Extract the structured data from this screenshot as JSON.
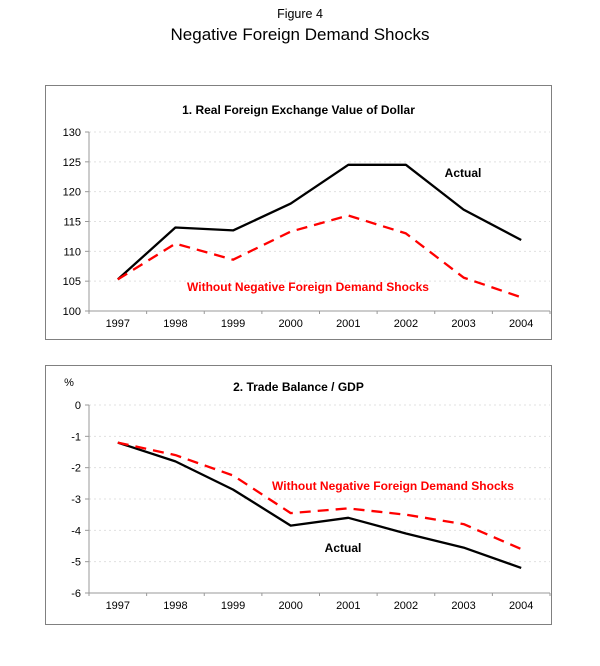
{
  "figure": {
    "number": "Figure 4",
    "title": "Negative Foreign Demand Shocks"
  },
  "colors": {
    "actual": "#000000",
    "counterfactual": "#ff0000",
    "grid": "#e0e0e0",
    "axis": "#999999",
    "text": "#000000"
  },
  "chart_data": [
    {
      "type": "line",
      "panel_title": "1. Real Foreign Exchange Value of Dollar",
      "unit_label": "",
      "categories": [
        "1997",
        "1998",
        "1999",
        "2000",
        "2001",
        "2002",
        "2003",
        "2004"
      ],
      "ylim": [
        100,
        130
      ],
      "yticks": [
        130,
        125,
        120,
        115,
        110,
        105,
        100
      ],
      "grid": true,
      "legend_position": "inline-annotations",
      "series": [
        {
          "name": "Actual",
          "style": "solid",
          "color_key": "actual",
          "values": [
            105.3,
            114.0,
            113.5,
            118.0,
            124.5,
            124.5,
            117.0,
            111.9
          ]
        },
        {
          "name": "Without Negative Foreign Demand Shocks",
          "style": "dashed",
          "color_key": "counterfactual",
          "values": [
            105.3,
            111.3,
            108.6,
            113.3,
            116.0,
            113.0,
            105.6,
            102.3
          ]
        }
      ],
      "annotations": [
        {
          "text": "Actual",
          "color": "#000000"
        },
        {
          "text": "Without Negative Foreign Demand Shocks",
          "color": "#ff0000"
        }
      ]
    },
    {
      "type": "line",
      "panel_title": "2. Trade Balance / GDP",
      "unit_label": "%",
      "categories": [
        "1997",
        "1998",
        "1999",
        "2000",
        "2001",
        "2002",
        "2003",
        "2004"
      ],
      "ylim": [
        -6,
        0
      ],
      "yticks": [
        0,
        -1,
        -2,
        -3,
        -4,
        -5,
        -6
      ],
      "grid": true,
      "legend_position": "inline-annotations",
      "series": [
        {
          "name": "Actual",
          "style": "solid",
          "color_key": "actual",
          "values": [
            -1.2,
            -1.8,
            -2.7,
            -3.85,
            -3.6,
            -4.1,
            -4.55,
            -5.2
          ]
        },
        {
          "name": "Without Negative Foreign Demand Shocks",
          "style": "dashed",
          "color_key": "counterfactual",
          "values": [
            -1.2,
            -1.6,
            -2.25,
            -3.45,
            -3.3,
            -3.5,
            -3.8,
            -4.6
          ]
        }
      ],
      "annotations": [
        {
          "text": "Without Negative Foreign Demand Shocks",
          "color": "#ff0000"
        },
        {
          "text": "Actual",
          "color": "#000000"
        }
      ]
    }
  ]
}
